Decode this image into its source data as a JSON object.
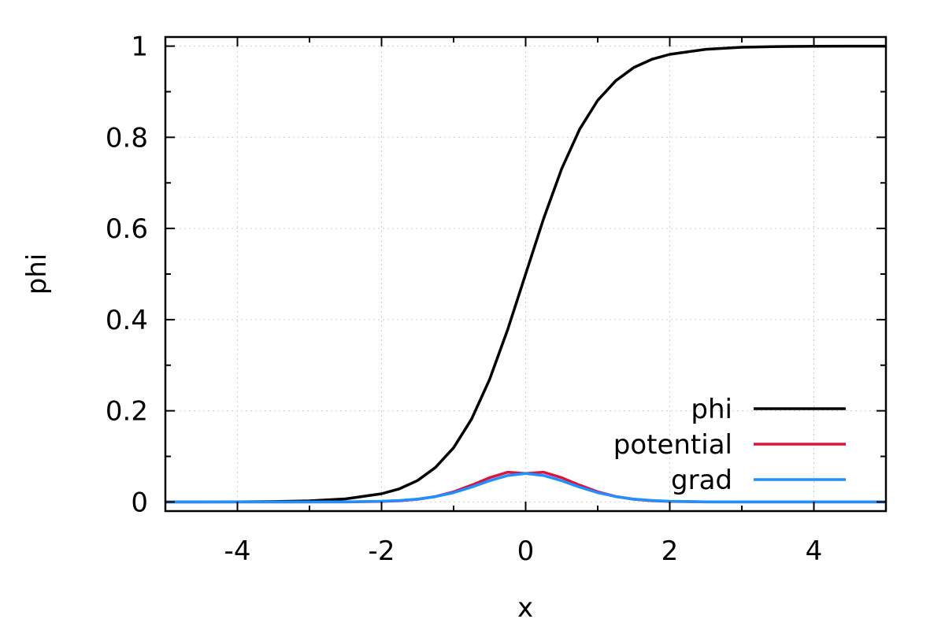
{
  "chart_data": {
    "type": "line",
    "xlabel": "x",
    "ylabel": "phi",
    "xlim": [
      -5,
      5
    ],
    "ylim": [
      -0.02,
      1.02
    ],
    "x_ticks": [
      -4,
      -2,
      0,
      2,
      4
    ],
    "y_ticks": [
      0,
      0.2,
      0.4,
      0.6,
      0.8,
      1
    ],
    "grid": true,
    "legend_position": "bottom-right",
    "x": [
      -5,
      -4.5,
      -4,
      -3.5,
      -3,
      -2.5,
      -2,
      -1.75,
      -1.5,
      -1.25,
      -1,
      -0.75,
      -0.5,
      -0.25,
      0,
      0.25,
      0.5,
      0.75,
      1,
      1.25,
      1.5,
      1.75,
      2,
      2.5,
      3,
      3.5,
      4,
      4.5,
      5
    ],
    "series": [
      {
        "name": "phi",
        "color": "#000000",
        "values": [
          0.0,
          0.0001,
          0.0003,
          0.0009,
          0.0025,
          0.0067,
          0.018,
          0.029,
          0.047,
          0.076,
          0.119,
          0.182,
          0.269,
          0.378,
          0.5,
          0.622,
          0.731,
          0.818,
          0.881,
          0.924,
          0.953,
          0.971,
          0.982,
          0.993,
          0.9975,
          0.9991,
          0.9997,
          0.9999,
          1.0
        ]
      },
      {
        "name": "potential",
        "color": "#dc143c",
        "values": [
          0.0,
          0.0,
          0.0,
          0.0,
          0.0,
          0.0001,
          0.0011,
          0.0027,
          0.0059,
          0.012,
          0.0222,
          0.0369,
          0.0533,
          0.0652,
          0.0625,
          0.0652,
          0.0533,
          0.0369,
          0.0222,
          0.012,
          0.0059,
          0.0027,
          0.0011,
          0.0001,
          0.0,
          0.0,
          0.0,
          0.0,
          0.0
        ]
      },
      {
        "name": "grad",
        "color": "#1e90ff",
        "values": [
          0.0,
          0.0,
          0.0,
          0.0,
          0.0001,
          0.0004,
          0.0016,
          0.0033,
          0.0064,
          0.0118,
          0.0204,
          0.0326,
          0.0466,
          0.058,
          0.0625,
          0.058,
          0.0466,
          0.0326,
          0.0204,
          0.0118,
          0.0064,
          0.0033,
          0.0016,
          0.0004,
          0.0001,
          0.0,
          0.0,
          0.0,
          0.0
        ]
      }
    ]
  }
}
